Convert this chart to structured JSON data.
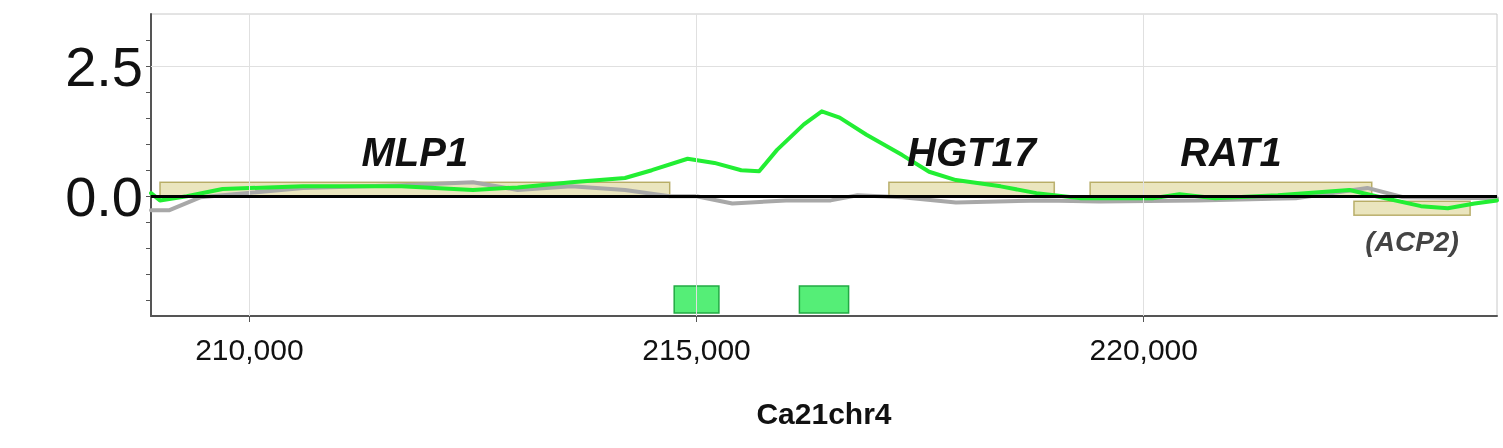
{
  "chart_data": {
    "type": "line",
    "xlabel": "Ca21chr4",
    "xlim": [
      208900,
      223950
    ],
    "xticks": [
      {
        "value": 210000,
        "label": "210,000"
      },
      {
        "value": 215000,
        "label": "215,000"
      },
      {
        "value": 220000,
        "label": "220,000"
      }
    ],
    "ylim": [
      -2.3,
      3.5
    ],
    "yticks": [
      {
        "value": 3,
        "label": null
      },
      {
        "value": 2.5,
        "label": "2.5"
      },
      {
        "value": 2,
        "label": null
      },
      {
        "value": 1.5,
        "label": null
      },
      {
        "value": 1,
        "label": null
      },
      {
        "value": 0.5,
        "label": null
      },
      {
        "value": 0,
        "label": "0.0"
      },
      {
        "value": -0.5,
        "label": null
      },
      {
        "value": -1,
        "label": null
      },
      {
        "value": -1.5,
        "label": null
      },
      {
        "value": -2,
        "label": null
      }
    ],
    "grid": true,
    "marker": "none",
    "line_style": "solid",
    "series": [
      {
        "color": "#a8a8a8",
        "x": [
          208900,
          209100,
          209450,
          210600,
          211700,
          212500,
          213000,
          213600,
          214200,
          214700,
          215000,
          215400,
          216000,
          216500,
          216800,
          217300,
          217900,
          218900,
          219500,
          220600,
          221700,
          222500,
          222900,
          223950
        ],
        "values": [
          -0.27,
          -0.27,
          -0.02,
          0.16,
          0.21,
          0.27,
          0.12,
          0.19,
          0.12,
          0,
          0,
          -0.14,
          -0.08,
          -0.08,
          0.02,
          -0.02,
          -0.12,
          -0.08,
          -0.1,
          -0.08,
          -0.04,
          0.16,
          -0.02,
          -0.04
        ]
      },
      {
        "color": "#22ee33",
        "x": [
          208900,
          209000,
          209300,
          209700,
          210600,
          211700,
          212500,
          213000,
          213600,
          214200,
          214500,
          214900,
          215200,
          215500,
          215700,
          215900,
          216200,
          216400,
          216600,
          216900,
          217300,
          217600,
          217900,
          218400,
          218800,
          219300,
          220100,
          220400,
          220800,
          221500,
          222300,
          222600,
          223100,
          223400,
          223700,
          223950
        ],
        "values": [
          0.06,
          -0.08,
          0,
          0.14,
          0.19,
          0.19,
          0.12,
          0.17,
          0.27,
          0.35,
          0.5,
          0.72,
          0.64,
          0.5,
          0.48,
          0.89,
          1.38,
          1.63,
          1.51,
          1.18,
          0.79,
          0.47,
          0.31,
          0.19,
          0.06,
          -0.04,
          -0.04,
          0.04,
          -0.04,
          0.02,
          0.12,
          0,
          -0.19,
          -0.23,
          -0.14,
          -0.08
        ]
      }
    ],
    "ref_lines": [
      {
        "axis": "y",
        "value": 0,
        "color": "#000000"
      }
    ],
    "bands": [
      {
        "axis": "x",
        "from": 209000,
        "to": 214700,
        "label": "MLP1",
        "color": "#d8d088"
      },
      {
        "axis": "x",
        "from": 217150,
        "to": 219000,
        "label": "HGT17",
        "color": "#d8d088"
      },
      {
        "axis": "x",
        "from": 219400,
        "to": 222550,
        "label": "RAT1",
        "color": "#d8d088"
      },
      {
        "axis": "x",
        "from": 222350,
        "to": 223650,
        "label": "(ACP2)",
        "color": "#d8d088"
      },
      {
        "axis": "x",
        "from": 214750,
        "to": 215250,
        "color": "#55ee77"
      },
      {
        "axis": "x",
        "from": 216150,
        "to": 216700,
        "color": "#55ee77"
      }
    ]
  }
}
